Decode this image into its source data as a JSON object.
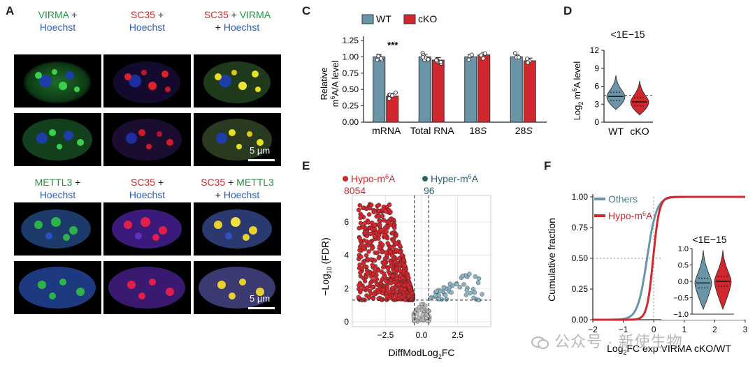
{
  "panel_labels": {
    "a": "A",
    "c": "C",
    "d": "D",
    "e": "E",
    "f": "F"
  },
  "panelA": {
    "captions_row1": [
      {
        "l1a": "VIRMA",
        "l1b": " +",
        "l2": "Hoechst"
      },
      {
        "l1a": "SC35",
        "l1b": " +",
        "l2": "Hoechst"
      },
      {
        "l1a": "SC35",
        "l1b": " + ",
        "l1c": "VIRMA",
        "l2a": "+ ",
        "l2b": "Hoechst"
      }
    ],
    "captions_row2": [
      {
        "l1a": "METTL3",
        "l1b": " +",
        "l2": "Hoechst"
      },
      {
        "l1a": "SC35",
        "l1b": " +",
        "l2": "Hoechst"
      },
      {
        "l1a": "SC35",
        "l1b": " + ",
        "l1c": "METTL3",
        "l2a": "+ ",
        "l2b": "Hoechst"
      }
    ],
    "scale_bar": "5 µm"
  },
  "watermark": "公众号 · 新使生物",
  "colors": {
    "wt": "#6a95a8",
    "cko": "#d0282e",
    "green": "#1a9a3a",
    "red": "#d42a2a",
    "blue": "#2a5fbf"
  },
  "chart_data": [
    {
      "panel": "C",
      "type": "bar",
      "categories": [
        "mRNA",
        "Total RNA",
        "18S",
        "28S"
      ],
      "series": [
        {
          "name": "WT",
          "values": [
            1.0,
            1.0,
            1.0,
            1.0
          ]
        },
        {
          "name": "cKO",
          "values": [
            0.4,
            0.95,
            1.03,
            0.94
          ]
        }
      ],
      "ylabel": "Relative m6A/A level",
      "ylim": [
        0,
        1.25
      ],
      "yticks": [
        "0.00",
        "0.25",
        "0.50",
        "0.75",
        "1.00",
        "1.25"
      ],
      "annotation": "***",
      "legend": "top"
    },
    {
      "panel": "D",
      "type": "violin",
      "categories": [
        "WT",
        "cKO"
      ],
      "medians": [
        4.3,
        3.4
      ],
      "ylabel": "Log2 m6A level",
      "ylim": [
        0,
        12
      ],
      "yticks": [
        "0",
        "3",
        "6",
        "9",
        "12"
      ],
      "annotation": "<1E−15",
      "reference_line": 4.5
    },
    {
      "panel": "E",
      "type": "scatter",
      "xlabel": "DiffModLog2FC",
      "ylabel": "−Log10 (FDR)",
      "xlim": [
        -4.8,
        4.8
      ],
      "ylim": [
        -0.3,
        7.6
      ],
      "xticks": [
        "−2.5",
        "0.0",
        "2.5"
      ],
      "yticks": [
        "0",
        "2",
        "4",
        "6"
      ],
      "groups": [
        {
          "name": "Hypo-m6A",
          "count": "8054"
        },
        {
          "name": "Hyper-m6A",
          "count": "96"
        }
      ],
      "thresholds": {
        "fdr_line": 1.3,
        "fc_lines": [
          -0.5,
          0.5
        ]
      }
    },
    {
      "panel": "F",
      "type": "line",
      "xlabel": "Log2FC exp VIRMA cKO/WT",
      "ylabel": "Cumulative fraction",
      "xlim": [
        -2,
        3
      ],
      "ylim": [
        0,
        1
      ],
      "xticks": [
        "−2",
        "−1",
        "0",
        "1",
        "2",
        "3"
      ],
      "yticks": [
        "0.00",
        "0.25",
        "0.50",
        "0.75",
        "1.00"
      ],
      "series": [
        {
          "name": "Others"
        },
        {
          "name": "Hypo-m6A"
        }
      ],
      "inset": {
        "type": "violin",
        "annotation": "<1E−15",
        "ylim": [
          -1,
          1
        ],
        "yticks": [
          "−1.0",
          "−0.5",
          "0.0",
          "0.5",
          "1.0"
        ]
      }
    }
  ]
}
